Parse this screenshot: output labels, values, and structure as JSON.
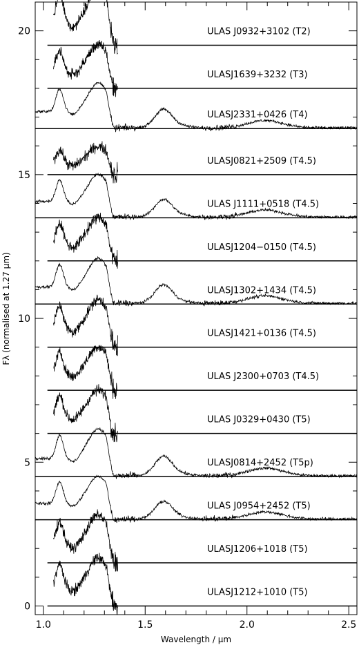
{
  "chart_data": {
    "type": "line",
    "xlabel": "Wavelength / μm",
    "ylabel": "Fλ (normalised at 1.27 μm)",
    "xlim": [
      0.96,
      2.54
    ],
    "ylim": [
      -0.3,
      21.0
    ],
    "x_ticks": [
      1.0,
      1.5,
      2.0,
      2.5
    ],
    "x_tick_labels": [
      "1.0",
      "1.5",
      "2.0",
      "2.5"
    ],
    "y_ticks": [
      0,
      5,
      10,
      15,
      20
    ],
    "y_tick_labels": [
      "0",
      "5",
      "10",
      "15",
      "20"
    ],
    "grid": false,
    "series": [
      {
        "label": "ULAS J0932+3102 (T2)",
        "offset": 19.5,
        "coverage": "J",
        "peak": 1.35
      },
      {
        "label": "ULASJ1639+3232 (T3)",
        "offset": 18.0,
        "coverage": "J",
        "peak": 1.0
      },
      {
        "label": "ULASJ2331+0426 (T4)",
        "offset": 16.6,
        "coverage": "JHK",
        "peak": 1.05
      },
      {
        "label": "ULASJ0821+2509 (T4.5)",
        "offset": 15.0,
        "coverage": "J",
        "peak": 0.65
      },
      {
        "label": "ULAS J1111+0518 (T4.5)",
        "offset": 13.5,
        "coverage": "JHK",
        "peak": 1.0
      },
      {
        "label": "ULASJ1204−0150 (T4.5)",
        "offset": 12.0,
        "coverage": "J",
        "peak": 1.0
      },
      {
        "label": "ULASJ1302+1434 (T4.5)",
        "offset": 10.5,
        "coverage": "JHK",
        "peak": 1.05
      },
      {
        "label": "ULASJ1421+0136 (T4.5)",
        "offset": 9.0,
        "coverage": "J",
        "peak": 1.1
      },
      {
        "label": "ULAS J2300+0703 (T4.5)",
        "offset": 7.5,
        "coverage": "J",
        "peak": 1.0
      },
      {
        "label": "ULAS J0329+0430 (T5)",
        "offset": 6.0,
        "coverage": "J",
        "peak": 1.0
      },
      {
        "label": "ULASJ0814+2452 (T5p)",
        "offset": 4.5,
        "coverage": "JHK",
        "peak": 1.1
      },
      {
        "label": "ULAS J0954+2452 (T5)",
        "offset": 3.0,
        "coverage": "JHK",
        "peak": 1.0
      },
      {
        "label": "ULASJ1206+1018 (T5)",
        "offset": 1.5,
        "coverage": "J",
        "peak": 1.1
      },
      {
        "label": "ULASJ1212+1010 (T5)",
        "offset": 0.0,
        "coverage": "J",
        "peak": 1.1
      }
    ]
  }
}
